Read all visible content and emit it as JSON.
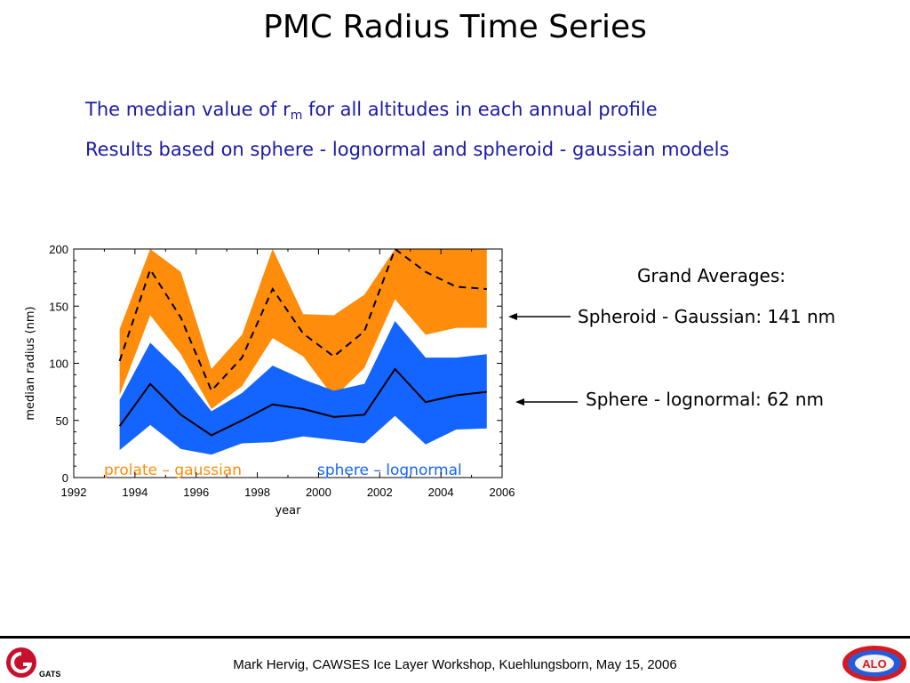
{
  "slide": {
    "title": "PMC Radius Time Series",
    "subtitle1_pre": "The median value of r",
    "subtitle1_sub": "m",
    "subtitle1_post": " for all altitudes in each annual profile",
    "subtitle2": "Results based on sphere - lognormal and spheroid - gaussian models"
  },
  "annotations": {
    "grand_title": "Grand Averages:",
    "spheroid": "Spheroid - Gaussian: 141 nm",
    "sphere": "Sphere - lognormal: 62 nm"
  },
  "footer": {
    "text": "Mark Hervig, CAWSES Ice Layer Workshop, Kuehlungsborn, May 15, 2006",
    "left_logo_text": "GATS",
    "right_logo_text": "ALO"
  },
  "colors": {
    "orange": "#ff8c0a",
    "blue": "#1464ff",
    "subtitle": "#1a1aa8"
  },
  "chart_data": {
    "type": "area",
    "xlabel": "year",
    "ylabel": "median radius (nm)",
    "xlim": [
      1992,
      2006
    ],
    "ylim": [
      0,
      200
    ],
    "x_ticks": [
      "1992",
      "1994",
      "1996",
      "1998",
      "2000",
      "2002",
      "2004",
      "2006"
    ],
    "y_ticks": [
      "0",
      "50",
      "100",
      "150",
      "200"
    ],
    "x": [
      1993.5,
      1994.5,
      1995.5,
      1996.5,
      1997.5,
      1998.5,
      1999.5,
      2000.5,
      2001.5,
      2002.5,
      2003.5,
      2004.5,
      2005.5
    ],
    "series": [
      {
        "name": "prolate – gaussian",
        "color": "#ff8c0a",
        "upper": [
          130,
          200,
          180,
          95,
          125,
          200,
          143,
          142,
          160,
          200,
          200,
          200,
          200
        ],
        "lower": [
          72,
          142,
          108,
          60,
          80,
          122,
          106,
          70,
          96,
          156,
          125,
          131,
          131
        ],
        "median": [
          102,
          182,
          140,
          76,
          105,
          165,
          126,
          106,
          128,
          200,
          180,
          167,
          165
        ]
      },
      {
        "name": "sphere – lognormal",
        "color": "#1464ff",
        "upper": [
          68,
          118,
          92,
          58,
          74,
          98,
          86,
          76,
          82,
          137,
          105,
          105,
          108
        ],
        "lower": [
          24,
          46,
          25,
          20,
          30,
          31,
          36,
          33,
          30,
          54,
          29,
          42,
          43
        ],
        "median": [
          45,
          82,
          55,
          37,
          50,
          64,
          60,
          53,
          55,
          95,
          66,
          72,
          75
        ]
      }
    ]
  }
}
